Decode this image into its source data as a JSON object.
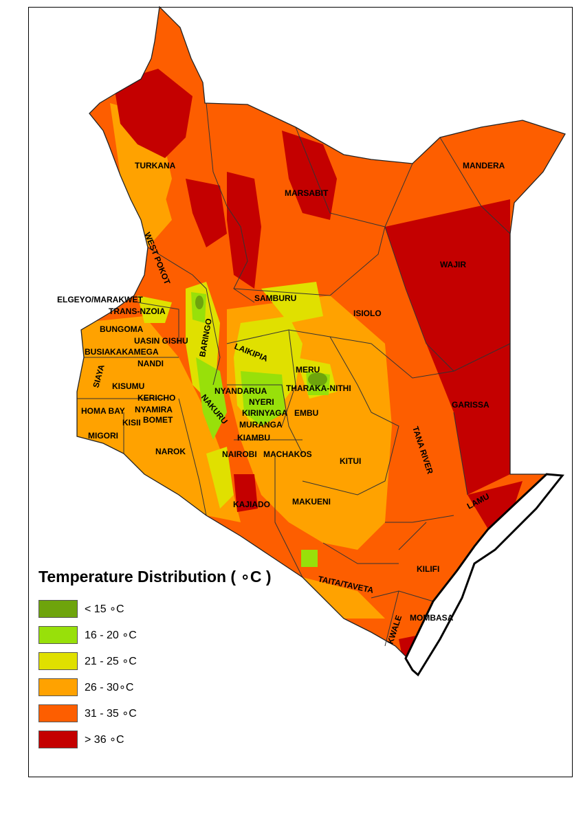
{
  "legend": {
    "title": "Temperature Distribution ( ∘C )",
    "classes": [
      {
        "label": "< 15 ∘C",
        "color": "#6ea40c"
      },
      {
        "label": "16 - 20 ∘C",
        "color": "#98e00a"
      },
      {
        "label": "21 - 25 ∘C",
        "color": "#e0e000"
      },
      {
        "label": "26 - 30∘C",
        "color": "#ffa200"
      },
      {
        "label": "31 - 35 ∘C",
        "color": "#fd5e00"
      },
      {
        "label": "> 36 ∘C",
        "color": "#c40000"
      }
    ]
  },
  "counties": {
    "turkana": "TURKANA",
    "marsabit": "MARSABIT",
    "mandera": "MANDERA",
    "wajir": "WAJIR",
    "west_pokot": "WEST POKOT",
    "elgeyo_marakwet": "ELGEYO/MARAKWET",
    "trans_nzoia": "TRANS-NZOIA",
    "samburu": "SAMBURU",
    "isiolo": "ISIOLO",
    "bungoma": "BUNGOMA",
    "uasin_gishu": "UASIN GISHU",
    "baringo": "BARINGO",
    "busia": "BUSIA",
    "kakamega": "KAKAMEGA",
    "nandi": "NANDI",
    "laikipia": "LAIKIPIA",
    "meru": "MERU",
    "siaya": "SIAYA",
    "kisumu": "KISUMU",
    "tharaka_nithi": "THARAKA-NITHI",
    "nyandarua": "NYANDARUA",
    "kericho": "KERICHO",
    "homa_bay": "HOMA BAY",
    "nyeri": "NYERI",
    "garissa": "GARISSA",
    "nyamira": "NYAMIRA",
    "nakuru": "NAKURU",
    "kirinyaga": "KIRINYAGA",
    "embu": "EMBU",
    "kisii": "KISII",
    "bomet": "BOMET",
    "muranga": "MURANGA",
    "tana_river": "TANA RIVER",
    "migori": "MIGORI",
    "kiambu": "KIAMBU",
    "narok": "NAROK",
    "nairobi": "NAIROBI",
    "machakos": "MACHAKOS",
    "kitui": "KITUI",
    "lamu": "LAMU",
    "kajiado": "KAJIADO",
    "makueni": "MAKUENI",
    "kilifi": "KILIFI",
    "taita_taveta": "TAITA/TAVETA",
    "kwale": "KWALE",
    "mombasa": "MOMBASA"
  }
}
